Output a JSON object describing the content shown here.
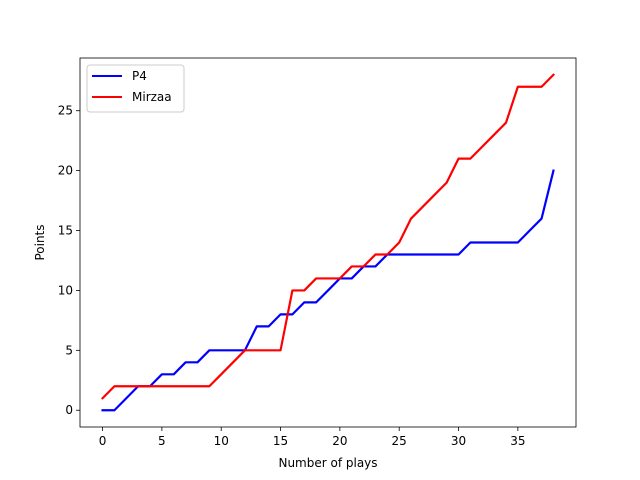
{
  "chart_data": {
    "type": "line",
    "title": "",
    "xlabel": "Number of plays",
    "ylabel": "Points",
    "xlim": [
      -1.9,
      39.9
    ],
    "ylim": [
      -1.4,
      29.4
    ],
    "xticks": [
      0,
      5,
      10,
      15,
      20,
      25,
      30,
      35
    ],
    "yticks": [
      0,
      5,
      10,
      15,
      20,
      25
    ],
    "grid": false,
    "legend_position": "top-left",
    "x": [
      0,
      1,
      2,
      3,
      4,
      5,
      6,
      7,
      8,
      9,
      10,
      11,
      12,
      13,
      14,
      15,
      16,
      17,
      18,
      19,
      20,
      21,
      22,
      23,
      24,
      25,
      26,
      27,
      28,
      29,
      30,
      31,
      32,
      33,
      34,
      35,
      36,
      37,
      38
    ],
    "series": [
      {
        "name": "P4",
        "color": "#0000ff",
        "values": [
          0,
          0,
          1,
          2,
          2,
          3,
          3,
          4,
          4,
          5,
          5,
          5,
          5,
          7,
          7,
          8,
          8,
          9,
          9,
          10,
          11,
          11,
          12,
          12,
          13,
          13,
          13,
          13,
          13,
          13,
          13,
          14,
          14,
          14,
          14,
          14,
          15,
          16,
          20
        ]
      },
      {
        "name": "Mirzaa",
        "color": "#ff0000",
        "values": [
          1,
          2,
          2,
          2,
          2,
          2,
          2,
          2,
          2,
          2,
          3,
          4,
          5,
          5,
          5,
          5,
          10,
          10,
          11,
          11,
          11,
          12,
          12,
          13,
          13,
          14,
          16,
          17,
          18,
          19,
          21,
          21,
          22,
          23,
          24,
          27,
          27,
          27,
          28
        ]
      }
    ]
  }
}
